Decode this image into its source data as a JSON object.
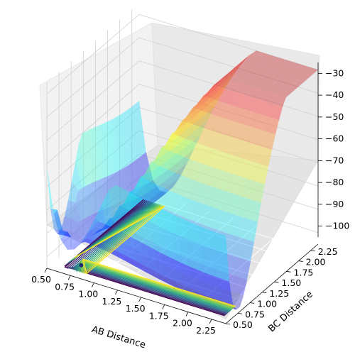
{
  "chart_data": {
    "type": "3d-surface-contour",
    "title": "",
    "xlabel": "AB Distance",
    "ylabel": "BC Distance",
    "zlabel": "",
    "xlim": [
      0.5,
      2.4
    ],
    "ylim": [
      0.5,
      2.4
    ],
    "zlim": [
      -105,
      -25
    ],
    "x_ticks": [
      "0.50",
      "0.75",
      "1.00",
      "1.25",
      "1.50",
      "1.75",
      "2.00",
      "2.25"
    ],
    "y_ticks": [
      "0.50",
      "0.75",
      "1.00",
      "1.25",
      "1.50",
      "1.75",
      "2.00",
      "2.25"
    ],
    "z_ticks": [
      "−100",
      "−90",
      "−80",
      "−70",
      "−60",
      "−50",
      "−40",
      "−30"
    ],
    "x_tick_values": [
      0.5,
      0.75,
      1.0,
      1.25,
      1.5,
      1.75,
      2.0,
      2.25
    ],
    "y_tick_values": [
      0.5,
      0.75,
      1.0,
      1.25,
      1.5,
      1.75,
      2.0,
      2.25
    ],
    "z_tick_values": [
      -100,
      -90,
      -80,
      -70,
      -60,
      -50,
      -40,
      -30
    ],
    "surface_colormap": "jet",
    "contour_colormap": "viridis",
    "grid": true,
    "marker_point": {
      "x": 0.74,
      "y": 0.74
    }
  }
}
